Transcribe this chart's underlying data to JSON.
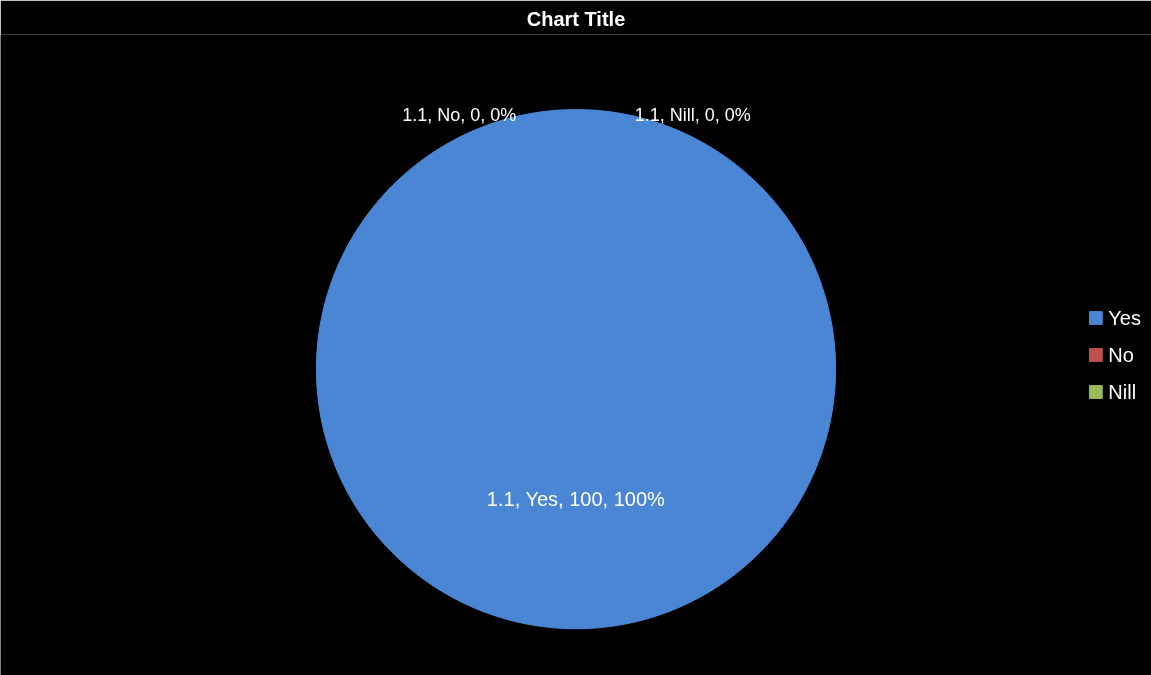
{
  "chart_data": {
    "type": "pie",
    "title": "Chart Title",
    "categories": [
      "Yes",
      "No",
      "Nill"
    ],
    "values": [
      100,
      0,
      0
    ],
    "colors": [
      "#4a86d4",
      "#c0504d",
      "#9bbb59"
    ],
    "value_labels": [
      "1.1, Yes, 100, 100%",
      "1.1, No, 0, 0%",
      "1.1, Nill, 0, 0%"
    ],
    "legend": "right"
  }
}
